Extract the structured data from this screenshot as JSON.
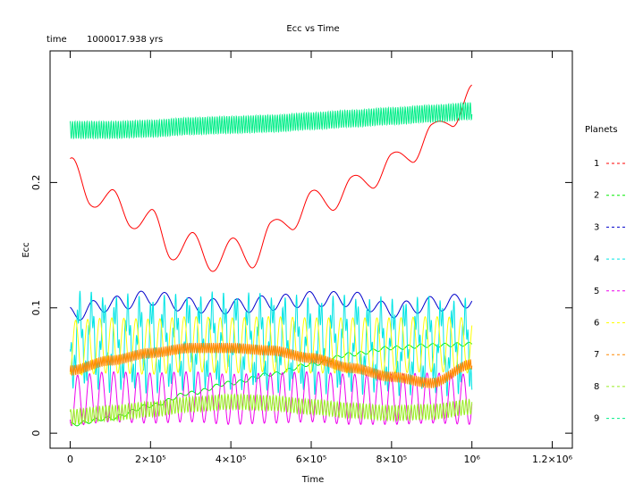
{
  "header": {
    "time_label": "time",
    "time_value": "1000017.938 yrs"
  },
  "chart_data": {
    "type": "line",
    "title": "Ecc vs Time",
    "xlabel": "Time",
    "ylabel": "Ecc",
    "xlim": [
      -50000,
      1250000
    ],
    "ylim": [
      -0.012,
      0.305
    ],
    "x_ticks": [
      {
        "value": 0,
        "label": "0"
      },
      {
        "value": 200000,
        "label": "2×10⁵"
      },
      {
        "value": 400000,
        "label": "4×10⁵"
      },
      {
        "value": 600000,
        "label": "6×10⁵"
      },
      {
        "value": 800000,
        "label": "8×10⁵"
      },
      {
        "value": 1000000,
        "label": "10⁶"
      },
      {
        "value": 1200000,
        "label": "1.2×10⁶"
      }
    ],
    "y_ticks": [
      {
        "value": 0,
        "label": "0"
      },
      {
        "value": 0.1,
        "label": "0.1"
      },
      {
        "value": 0.2,
        "label": "0.2"
      }
    ],
    "legend_title": "Planets",
    "legend_placement": "right",
    "series": [
      {
        "name": "1",
        "color": "#ff0000",
        "x": [
          0,
          50000,
          100000,
          150000,
          200000,
          250000,
          300000,
          350000,
          400000,
          450000,
          500000,
          550000,
          600000,
          650000,
          700000,
          750000,
          800000,
          850000,
          900000,
          950000,
          1000000
        ],
        "y": [
          0.206,
          0.195,
          0.181,
          0.177,
          0.166,
          0.151,
          0.148,
          0.141,
          0.144,
          0.143,
          0.158,
          0.173,
          0.183,
          0.188,
          0.195,
          0.205,
          0.214,
          0.225,
          0.238,
          0.253,
          0.27
        ]
      },
      {
        "name": "2",
        "color": "#00ee00",
        "x": [
          0,
          100000,
          200000,
          300000,
          400000,
          500000,
          600000,
          700000,
          800000,
          900000,
          1000000
        ],
        "y": [
          0.007,
          0.012,
          0.022,
          0.032,
          0.04,
          0.047,
          0.055,
          0.063,
          0.068,
          0.07,
          0.071
        ]
      },
      {
        "name": "3",
        "color": "#0000cc",
        "x": [
          0,
          100000,
          200000,
          300000,
          400000,
          500000,
          600000,
          700000,
          800000,
          900000,
          1000000
        ],
        "y": [
          0.095,
          0.103,
          0.108,
          0.102,
          0.101,
          0.104,
          0.107,
          0.107,
          0.098,
          0.103,
          0.106
        ]
      },
      {
        "name": "4",
        "color": "#00e5e5",
        "x": [
          0,
          100000,
          200000,
          300000,
          400000,
          500000,
          600000,
          700000,
          800000,
          900000,
          1000000
        ],
        "y": [
          0.075,
          0.072,
          0.071,
          0.072,
          0.074,
          0.072,
          0.07,
          0.071,
          0.069,
          0.07,
          0.068
        ]
      },
      {
        "name": "5",
        "color": "#ee00ee",
        "x": [
          0,
          100000,
          200000,
          300000,
          400000,
          500000,
          600000,
          700000,
          800000,
          900000,
          1000000
        ],
        "y": [
          0.026,
          0.029,
          0.028,
          0.029,
          0.027,
          0.028,
          0.029,
          0.027,
          0.027,
          0.028,
          0.027
        ]
      },
      {
        "name": "6",
        "color": "#ffff00",
        "x": [
          0,
          100000,
          200000,
          300000,
          400000,
          500000,
          600000,
          700000,
          800000,
          900000,
          1000000
        ],
        "y": [
          0.068,
          0.07,
          0.069,
          0.071,
          0.07,
          0.071,
          0.07,
          0.07,
          0.07,
          0.071,
          0.07
        ]
      },
      {
        "name": "7",
        "color": "#ff8800",
        "x": [
          0,
          100000,
          200000,
          300000,
          400000,
          500000,
          600000,
          700000,
          800000,
          900000,
          1000000
        ],
        "y": [
          0.05,
          0.058,
          0.064,
          0.068,
          0.068,
          0.066,
          0.06,
          0.052,
          0.045,
          0.04,
          0.055
        ]
      },
      {
        "name": "8",
        "color": "#99ee22",
        "x": [
          0,
          100000,
          200000,
          300000,
          400000,
          500000,
          600000,
          700000,
          800000,
          900000,
          1000000
        ],
        "y": [
          0.013,
          0.016,
          0.019,
          0.023,
          0.025,
          0.024,
          0.021,
          0.018,
          0.016,
          0.017,
          0.021
        ]
      },
      {
        "name": "9",
        "color": "#00ee88",
        "x": [
          0,
          100000,
          200000,
          300000,
          400000,
          500000,
          600000,
          700000,
          800000,
          900000,
          1000000
        ],
        "y": [
          0.242,
          0.242,
          0.243,
          0.245,
          0.246,
          0.247,
          0.249,
          0.251,
          0.253,
          0.255,
          0.257
        ]
      }
    ]
  }
}
